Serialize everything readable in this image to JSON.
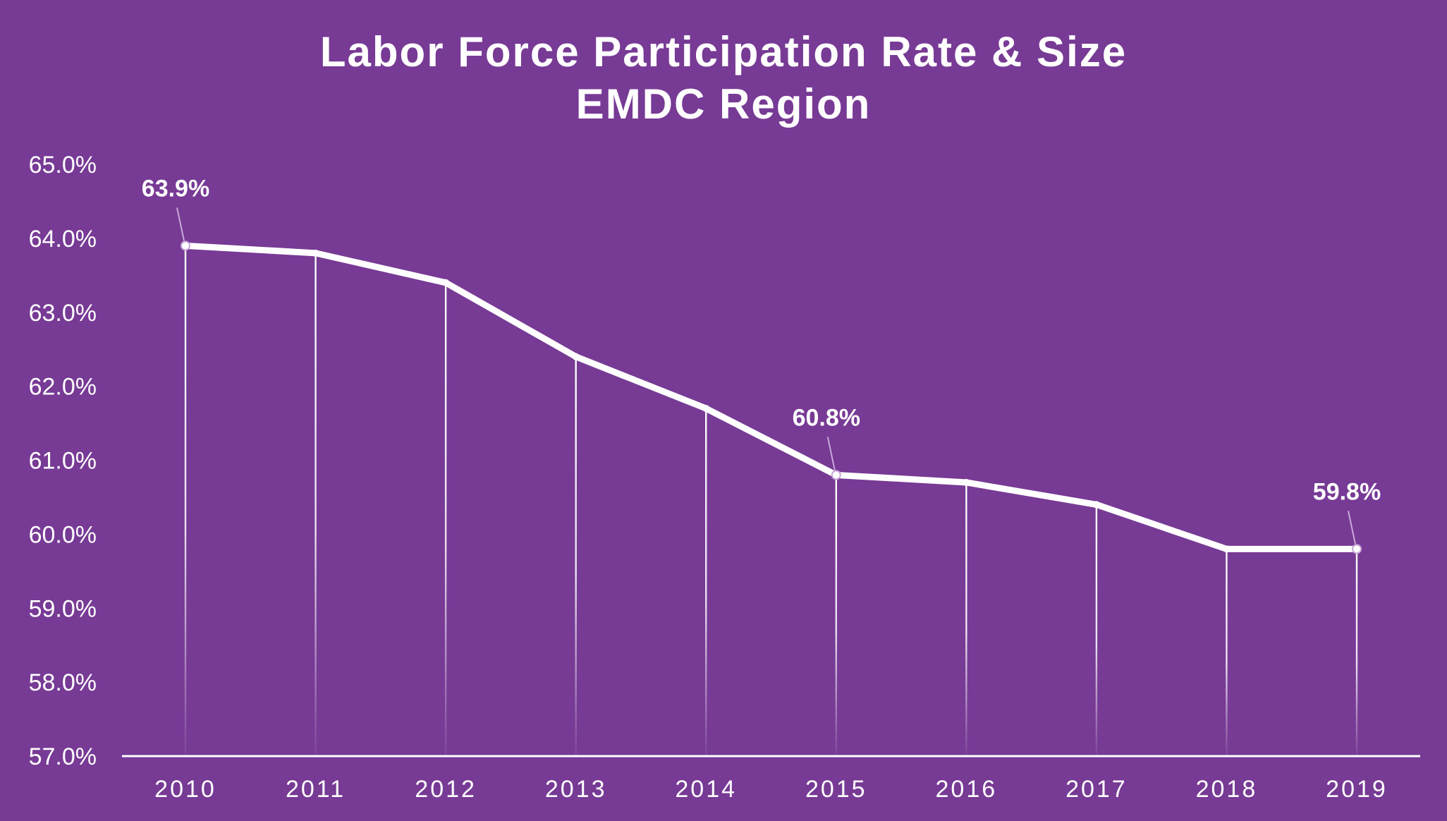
{
  "colors": {
    "background": "#773a95",
    "line": "#ffffff",
    "text": "#ffffff"
  },
  "chart_data": {
    "type": "line",
    "title": "Labor Force Participation Rate & Size",
    "subtitle": "EMDC Region",
    "xlabel": "",
    "ylabel": "",
    "ylim": [
      57.0,
      65.0
    ],
    "grid": false,
    "y_ticks": [
      "65.0%",
      "64.0%",
      "63.0%",
      "62.0%",
      "61.0%",
      "60.0%",
      "59.0%",
      "58.0%",
      "57.0%"
    ],
    "y_tick_values": [
      65,
      64,
      63,
      62,
      61,
      60,
      59,
      58,
      57
    ],
    "categories": [
      "2010",
      "2011",
      "2012",
      "2013",
      "2014",
      "2015",
      "2016",
      "2017",
      "2018",
      "2019"
    ],
    "series": [
      {
        "name": "Labor Force Participation Rate",
        "values": [
          63.9,
          63.8,
          63.4,
          62.4,
          61.7,
          60.8,
          60.7,
          60.4,
          59.8,
          59.8
        ]
      }
    ],
    "annotations": [
      {
        "index": 0,
        "text": "63.9%"
      },
      {
        "index": 5,
        "text": "60.8%"
      },
      {
        "index": 9,
        "text": "59.8%"
      }
    ]
  }
}
